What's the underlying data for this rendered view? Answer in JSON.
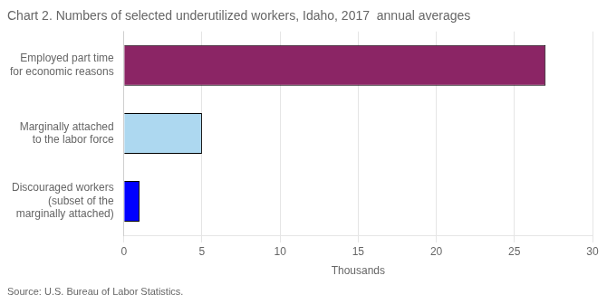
{
  "chart_data": {
    "type": "bar",
    "orientation": "horizontal",
    "title": "Chart 2. Numbers of selected underutilized workers, Idaho, 2017  annual averages",
    "categories": [
      "Discouraged workers\n(subset of the\nmarginally attached)",
      "Marginally attached\nto the labor force",
      "Employed part time\nfor economic reasons"
    ],
    "values": [
      1.0,
      5.0,
      27.0
    ],
    "colors": [
      "#0000ff",
      "#add8f0",
      "#8b2565"
    ],
    "xlabel": "Thousands",
    "xlim": [
      0,
      30
    ],
    "xticks": [
      0,
      5,
      10,
      15,
      20,
      25,
      30
    ],
    "grid": true,
    "annotation": "Source: U.S. Bureau of Labor Statistics."
  }
}
